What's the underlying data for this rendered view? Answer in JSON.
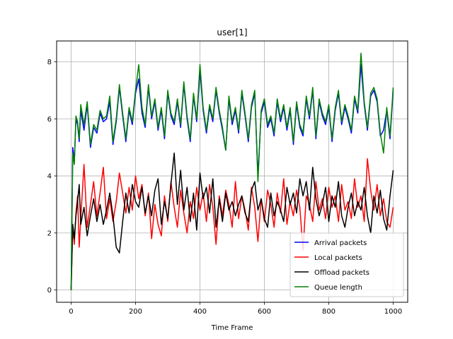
{
  "chart_data": {
    "type": "line",
    "title": "user[1]",
    "xlabel": "Time Frame",
    "ylabel": "",
    "xlim": [
      -45,
      1045
    ],
    "ylim": [
      -0.43,
      8.73
    ],
    "xticks": [
      0,
      200,
      400,
      600,
      800,
      1000
    ],
    "yticks": [
      0,
      2,
      4,
      6,
      8
    ],
    "grid": true,
    "legend_position": "lower-right",
    "series": [
      {
        "name": "Arrival packets",
        "color": "#0000ff",
        "x": [
          0,
          5,
          10,
          15,
          20,
          25,
          30,
          40,
          50,
          60,
          70,
          80,
          90,
          100,
          110,
          120,
          130,
          140,
          150,
          160,
          170,
          180,
          190,
          200,
          210,
          220,
          230,
          240,
          250,
          260,
          270,
          280,
          290,
          300,
          310,
          320,
          330,
          340,
          350,
          360,
          370,
          380,
          390,
          400,
          410,
          420,
          430,
          440,
          450,
          460,
          470,
          480,
          490,
          500,
          510,
          520,
          530,
          540,
          550,
          560,
          570,
          580,
          590,
          600,
          610,
          620,
          630,
          640,
          650,
          660,
          670,
          680,
          690,
          700,
          710,
          720,
          730,
          740,
          750,
          760,
          770,
          780,
          790,
          800,
          810,
          820,
          830,
          840,
          850,
          860,
          870,
          880,
          890,
          900,
          910,
          920,
          930,
          940,
          950,
          960,
          970,
          980,
          990,
          1000
        ],
        "y": [
          0,
          5.0,
          4.5,
          6.0,
          5.8,
          5.2,
          6.3,
          5.6,
          6.5,
          5.0,
          5.7,
          5.5,
          6.2,
          5.9,
          6.0,
          6.6,
          5.1,
          5.9,
          7.1,
          6.1,
          5.2,
          6.3,
          5.8,
          6.9,
          7.4,
          6.2,
          5.7,
          7.1,
          6.0,
          6.6,
          5.6,
          6.3,
          5.3,
          6.9,
          6.1,
          5.8,
          6.6,
          5.7,
          7.2,
          6.0,
          5.2,
          6.8,
          5.9,
          7.7,
          6.3,
          5.5,
          6.4,
          5.9,
          7.0,
          6.2,
          5.6,
          4.9,
          6.7,
          5.8,
          6.3,
          5.5,
          6.9,
          6.1,
          5.2,
          6.4,
          6.9,
          4.0,
          6.2,
          6.6,
          5.7,
          6.0,
          5.4,
          6.6,
          5.9,
          6.4,
          5.6,
          6.3,
          5.1,
          6.5,
          5.7,
          5.4,
          6.7,
          6.0,
          7.0,
          5.3,
          6.6,
          6.1,
          5.8,
          6.4,
          5.2,
          6.3,
          6.9,
          5.8,
          6.4,
          6.0,
          5.5,
          6.7,
          6.2,
          7.9,
          6.5,
          5.6,
          6.8,
          7.0,
          6.6,
          5.4,
          5.6,
          6.3,
          5.3,
          7.0
        ]
      },
      {
        "name": "Local packets",
        "color": "#ff0000",
        "x": [
          0,
          5,
          10,
          15,
          20,
          25,
          30,
          40,
          50,
          60,
          70,
          80,
          90,
          100,
          110,
          120,
          130,
          140,
          150,
          160,
          170,
          180,
          190,
          200,
          210,
          220,
          230,
          240,
          250,
          260,
          270,
          280,
          290,
          300,
          310,
          320,
          330,
          340,
          350,
          360,
          370,
          380,
          390,
          400,
          410,
          420,
          430,
          440,
          450,
          460,
          470,
          480,
          490,
          500,
          510,
          520,
          530,
          540,
          550,
          560,
          570,
          580,
          590,
          600,
          610,
          620,
          630,
          640,
          650,
          660,
          670,
          680,
          690,
          700,
          710,
          720,
          730,
          740,
          750,
          760,
          770,
          780,
          790,
          800,
          810,
          820,
          830,
          840,
          850,
          860,
          870,
          880,
          890,
          900,
          910,
          920,
          930,
          940,
          950,
          960,
          970,
          980,
          990,
          1000
        ],
        "y": [
          0,
          2.2,
          1.6,
          2.7,
          3.3,
          1.5,
          2.5,
          4.4,
          2.2,
          3.0,
          3.8,
          2.6,
          3.4,
          4.3,
          2.5,
          3.2,
          2.4,
          3.1,
          4.1,
          3.4,
          2.7,
          3.6,
          2.8,
          4.0,
          3.2,
          3.7,
          2.6,
          3.4,
          1.8,
          3.0,
          2.3,
          1.9,
          3.3,
          2.4,
          3.8,
          2.9,
          2.2,
          3.5,
          2.7,
          2.0,
          3.1,
          2.5,
          3.6,
          2.8,
          3.4,
          2.4,
          3.7,
          2.9,
          1.6,
          3.3,
          2.6,
          3.5,
          3.0,
          2.2,
          3.8,
          2.5,
          3.3,
          2.8,
          2.1,
          3.6,
          2.9,
          1.7,
          3.2,
          2.4,
          3.5,
          3.0,
          2.2,
          3.4,
          2.7,
          3.9,
          2.3,
          3.1,
          2.6,
          3.5,
          2.9,
          1.4,
          3.3,
          3.0,
          2.4,
          3.8,
          2.8,
          3.2,
          2.5,
          3.6,
          2.9,
          3.3,
          2.4,
          3.7,
          2.8,
          3.1,
          2.5,
          3.9,
          2.9,
          3.3,
          2.4,
          4.6,
          3.5,
          2.8,
          3.7,
          2.6,
          3.2,
          2.4,
          2.2,
          2.9
        ]
      },
      {
        "name": "Offload packets",
        "color": "#000000",
        "x": [
          0,
          5,
          10,
          15,
          20,
          25,
          30,
          40,
          50,
          60,
          70,
          80,
          90,
          100,
          110,
          120,
          130,
          140,
          150,
          160,
          170,
          180,
          190,
          200,
          210,
          220,
          230,
          240,
          250,
          260,
          270,
          280,
          290,
          300,
          310,
          320,
          330,
          340,
          350,
          360,
          370,
          380,
          390,
          400,
          410,
          420,
          430,
          440,
          450,
          460,
          470,
          480,
          490,
          500,
          510,
          520,
          530,
          540,
          550,
          560,
          570,
          580,
          590,
          600,
          610,
          620,
          630,
          640,
          650,
          660,
          670,
          680,
          690,
          700,
          710,
          720,
          730,
          740,
          750,
          760,
          770,
          780,
          790,
          800,
          810,
          820,
          830,
          840,
          850,
          860,
          870,
          880,
          890,
          900,
          910,
          920,
          930,
          940,
          950,
          960,
          970,
          980,
          990,
          1000
        ],
        "y": [
          0,
          2.3,
          1.8,
          2.6,
          3.1,
          3.7,
          2.3,
          2.9,
          1.9,
          2.6,
          3.2,
          2.4,
          3.0,
          2.3,
          2.8,
          3.4,
          2.6,
          1.5,
          1.3,
          2.4,
          3.4,
          2.7,
          3.7,
          3.1,
          2.9,
          3.6,
          2.7,
          3.3,
          2.6,
          3.5,
          3.9,
          2.3,
          3.1,
          2.5,
          3.7,
          4.8,
          3.0,
          4.2,
          2.8,
          3.6,
          2.4,
          3.4,
          2.1,
          4.1,
          3.2,
          3.6,
          2.7,
          3.9,
          2.2,
          3.2,
          2.4,
          3.4,
          2.8,
          3.1,
          2.6,
          3.0,
          3.3,
          2.7,
          2.4,
          3.5,
          3.8,
          2.8,
          3.2,
          2.5,
          2.2,
          3.4,
          2.6,
          3.1,
          2.8,
          2.4,
          3.6,
          3.0,
          3.4,
          2.7,
          3.9,
          3.3,
          3.8,
          2.8,
          4.3,
          3.2,
          2.6,
          3.0,
          3.6,
          2.4,
          3.3,
          2.9,
          3.8,
          2.6,
          2.2,
          2.9,
          3.4,
          2.6,
          3.1,
          2.8,
          3.6,
          2.6,
          2.0,
          3.3,
          2.7,
          3.5,
          2.5,
          2.1,
          3.3,
          4.2
        ]
      },
      {
        "name": "Queue length",
        "color": "#008000",
        "x": [
          0,
          5,
          10,
          15,
          20,
          25,
          30,
          40,
          50,
          60,
          70,
          80,
          90,
          100,
          110,
          120,
          130,
          140,
          150,
          160,
          170,
          180,
          190,
          200,
          210,
          220,
          230,
          240,
          250,
          260,
          270,
          280,
          290,
          300,
          310,
          320,
          330,
          340,
          350,
          360,
          370,
          380,
          390,
          400,
          410,
          420,
          430,
          440,
          450,
          460,
          470,
          480,
          490,
          500,
          510,
          520,
          530,
          540,
          550,
          560,
          570,
          580,
          590,
          600,
          610,
          620,
          630,
          640,
          650,
          660,
          670,
          680,
          690,
          700,
          710,
          720,
          730,
          740,
          750,
          760,
          770,
          780,
          790,
          800,
          810,
          820,
          830,
          840,
          850,
          860,
          870,
          880,
          890,
          900,
          910,
          920,
          930,
          940,
          950,
          960,
          970,
          980,
          990,
          1000
        ],
        "y": [
          0,
          4.8,
          4.4,
          6.1,
          5.9,
          5.3,
          6.5,
          5.8,
          6.6,
          5.1,
          5.8,
          5.6,
          6.3,
          6.0,
          6.1,
          6.8,
          5.2,
          6.0,
          7.2,
          6.2,
          5.3,
          6.4,
          5.9,
          7.0,
          7.9,
          6.4,
          5.8,
          7.2,
          6.1,
          6.7,
          5.7,
          6.4,
          5.4,
          7.0,
          6.2,
          5.9,
          6.7,
          5.8,
          7.3,
          6.1,
          5.3,
          6.9,
          6.0,
          7.9,
          6.4,
          5.6,
          6.5,
          6.0,
          7.1,
          6.3,
          5.7,
          4.9,
          6.8,
          5.9,
          6.4,
          5.6,
          7.0,
          6.2,
          5.3,
          6.5,
          7.0,
          3.8,
          6.3,
          6.7,
          5.8,
          6.1,
          5.5,
          6.7,
          6.0,
          6.5,
          5.7,
          6.4,
          5.2,
          6.6,
          5.8,
          5.5,
          6.8,
          6.1,
          7.1,
          5.4,
          6.7,
          6.2,
          5.9,
          6.5,
          5.3,
          6.4,
          7.0,
          5.9,
          6.5,
          6.1,
          5.6,
          6.8,
          6.3,
          8.3,
          6.6,
          5.7,
          6.9,
          7.1,
          6.7,
          5.5,
          4.8,
          6.4,
          5.4,
          7.1
        ]
      }
    ]
  }
}
